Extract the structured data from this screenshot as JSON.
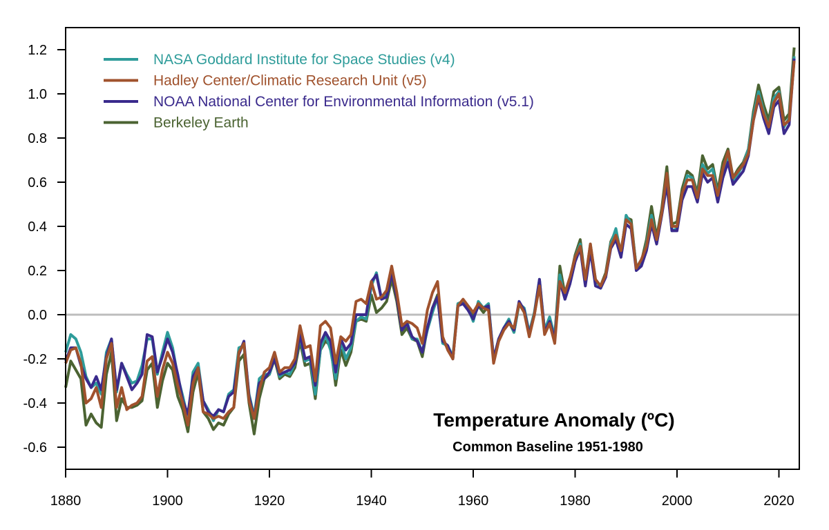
{
  "chart_data": {
    "type": "line",
    "title": "Temperature Anomaly (ºC)",
    "subtitle": "Common Baseline 1951-1980",
    "xlabel": "",
    "ylabel": "",
    "xlim": [
      1880,
      2024
    ],
    "ylim": [
      -0.7,
      1.3
    ],
    "x_start": 1880,
    "x_end": 2023,
    "xticks": [
      1880,
      1900,
      1920,
      1940,
      1960,
      1980,
      2000,
      2020
    ],
    "yticks": [
      "-0.6",
      "-0.4",
      "-0.2",
      "0.0",
      "0.2",
      "0.4",
      "0.6",
      "0.8",
      "1.0",
      "1.2"
    ],
    "reference_line": 0.0,
    "reference_line_color": "#bdbdbd",
    "grid": false,
    "legend_placement": "top-left",
    "series": [
      {
        "name": "NASA Goddard Institute for Space Studies (v4)",
        "color": "#2e9c9a",
        "values": [
          -0.17,
          -0.09,
          -0.11,
          -0.17,
          -0.28,
          -0.33,
          -0.31,
          -0.36,
          -0.17,
          -0.11,
          -0.35,
          -0.22,
          -0.27,
          -0.31,
          -0.3,
          -0.23,
          -0.11,
          -0.11,
          -0.27,
          -0.17,
          -0.08,
          -0.15,
          -0.28,
          -0.37,
          -0.47,
          -0.26,
          -0.22,
          -0.39,
          -0.43,
          -0.48,
          -0.43,
          -0.44,
          -0.36,
          -0.34,
          -0.15,
          -0.14,
          -0.36,
          -0.46,
          -0.29,
          -0.27,
          -0.27,
          -0.19,
          -0.28,
          -0.26,
          -0.27,
          -0.22,
          -0.1,
          -0.21,
          -0.2,
          -0.36,
          -0.16,
          -0.09,
          -0.16,
          -0.29,
          -0.12,
          -0.2,
          -0.15,
          -0.03,
          -0.01,
          -0.02,
          0.13,
          0.19,
          0.07,
          0.09,
          0.2,
          0.09,
          -0.07,
          -0.03,
          -0.11,
          -0.11,
          -0.17,
          -0.07,
          0.01,
          0.08,
          -0.13,
          -0.14,
          -0.19,
          0.05,
          0.06,
          0.03,
          -0.03,
          0.06,
          0.03,
          0.05,
          -0.2,
          -0.11,
          -0.06,
          -0.02,
          -0.08,
          0.05,
          0.03,
          -0.08,
          0.01,
          0.16,
          -0.07,
          -0.01,
          -0.1,
          0.18,
          0.07,
          0.16,
          0.26,
          0.32,
          0.14,
          0.31,
          0.16,
          0.12,
          0.18,
          0.32,
          0.39,
          0.27,
          0.45,
          0.41,
          0.22,
          0.23,
          0.32,
          0.45,
          0.33,
          0.46,
          0.61,
          0.38,
          0.39,
          0.54,
          0.63,
          0.62,
          0.53,
          0.68,
          0.64,
          0.66,
          0.54,
          0.65,
          0.72,
          0.61,
          0.64,
          0.68,
          0.75,
          0.9,
          1.01,
          0.92,
          0.85,
          0.98,
          1.01,
          0.85,
          0.89,
          1.17
        ]
      },
      {
        "name": "Hadley Center/Climatic Research Unit (v5)",
        "color": "#a0522d",
        "values": [
          -0.22,
          -0.16,
          -0.15,
          -0.22,
          -0.4,
          -0.38,
          -0.33,
          -0.42,
          -0.2,
          -0.13,
          -0.42,
          -0.33,
          -0.43,
          -0.41,
          -0.4,
          -0.37,
          -0.21,
          -0.19,
          -0.37,
          -0.25,
          -0.17,
          -0.22,
          -0.32,
          -0.4,
          -0.5,
          -0.31,
          -0.24,
          -0.44,
          -0.45,
          -0.47,
          -0.46,
          -0.47,
          -0.44,
          -0.42,
          -0.17,
          -0.13,
          -0.39,
          -0.47,
          -0.34,
          -0.26,
          -0.24,
          -0.17,
          -0.26,
          -0.24,
          -0.24,
          -0.2,
          -0.05,
          -0.15,
          -0.14,
          -0.3,
          -0.05,
          -0.03,
          -0.06,
          -0.22,
          -0.1,
          -0.12,
          -0.09,
          0.06,
          0.07,
          0.05,
          0.15,
          0.07,
          0.08,
          0.11,
          0.22,
          0.1,
          -0.05,
          -0.03,
          -0.04,
          -0.06,
          -0.13,
          0.02,
          0.1,
          0.15,
          -0.1,
          -0.16,
          -0.2,
          0.04,
          0.07,
          0.04,
          0.01,
          0.05,
          0.03,
          0.02,
          -0.22,
          -0.12,
          -0.07,
          -0.04,
          -0.06,
          0.05,
          0.01,
          -0.1,
          0.0,
          0.13,
          -0.09,
          -0.04,
          -0.13,
          0.15,
          0.1,
          0.17,
          0.26,
          0.31,
          0.16,
          0.32,
          0.16,
          0.13,
          0.18,
          0.31,
          0.36,
          0.29,
          0.43,
          0.41,
          0.21,
          0.25,
          0.31,
          0.43,
          0.34,
          0.46,
          0.64,
          0.4,
          0.4,
          0.55,
          0.61,
          0.61,
          0.53,
          0.66,
          0.63,
          0.63,
          0.54,
          0.66,
          0.74,
          0.62,
          0.65,
          0.68,
          0.73,
          0.88,
          0.99,
          0.91,
          0.85,
          0.96,
          1.0,
          0.86,
          0.88,
          1.15
        ]
      },
      {
        "name": "NOAA National Center for Environmental Information (v5.1)",
        "color": "#3a2a8c",
        "values": [
          -0.21,
          -0.15,
          -0.15,
          -0.23,
          -0.29,
          -0.33,
          -0.28,
          -0.34,
          -0.19,
          -0.11,
          -0.34,
          -0.22,
          -0.28,
          -0.34,
          -0.31,
          -0.27,
          -0.09,
          -0.1,
          -0.26,
          -0.19,
          -0.11,
          -0.17,
          -0.27,
          -0.39,
          -0.45,
          -0.28,
          -0.24,
          -0.39,
          -0.44,
          -0.46,
          -0.43,
          -0.44,
          -0.37,
          -0.35,
          -0.18,
          -0.12,
          -0.37,
          -0.47,
          -0.31,
          -0.29,
          -0.26,
          -0.2,
          -0.27,
          -0.26,
          -0.25,
          -0.22,
          -0.09,
          -0.2,
          -0.19,
          -0.32,
          -0.13,
          -0.08,
          -0.12,
          -0.26,
          -0.11,
          -0.16,
          -0.13,
          0.0,
          0.0,
          0.0,
          0.15,
          0.18,
          0.07,
          0.08,
          0.19,
          0.08,
          -0.07,
          -0.04,
          -0.1,
          -0.12,
          -0.17,
          -0.06,
          0.03,
          0.08,
          -0.12,
          -0.14,
          -0.2,
          0.04,
          0.05,
          0.02,
          -0.02,
          0.04,
          0.03,
          0.04,
          -0.2,
          -0.11,
          -0.06,
          -0.03,
          -0.07,
          0.06,
          0.02,
          -0.09,
          0.0,
          0.16,
          -0.08,
          -0.03,
          -0.11,
          0.15,
          0.07,
          0.14,
          0.24,
          0.3,
          0.13,
          0.29,
          0.13,
          0.12,
          0.17,
          0.3,
          0.34,
          0.26,
          0.41,
          0.39,
          0.2,
          0.22,
          0.29,
          0.41,
          0.32,
          0.45,
          0.59,
          0.38,
          0.38,
          0.52,
          0.58,
          0.58,
          0.51,
          0.64,
          0.6,
          0.62,
          0.51,
          0.62,
          0.69,
          0.59,
          0.62,
          0.65,
          0.72,
          0.88,
          0.98,
          0.89,
          0.82,
          0.94,
          0.97,
          0.82,
          0.86,
          1.16
        ]
      },
      {
        "name": "Berkeley Earth",
        "color": "#4b6332",
        "values": [
          -0.33,
          -0.21,
          -0.25,
          -0.29,
          -0.5,
          -0.45,
          -0.49,
          -0.51,
          -0.27,
          -0.17,
          -0.48,
          -0.38,
          -0.42,
          -0.42,
          -0.41,
          -0.39,
          -0.25,
          -0.22,
          -0.42,
          -0.3,
          -0.22,
          -0.25,
          -0.37,
          -0.43,
          -0.53,
          -0.35,
          -0.26,
          -0.44,
          -0.47,
          -0.52,
          -0.49,
          -0.5,
          -0.45,
          -0.42,
          -0.21,
          -0.18,
          -0.4,
          -0.54,
          -0.38,
          -0.29,
          -0.27,
          -0.2,
          -0.29,
          -0.27,
          -0.28,
          -0.24,
          -0.12,
          -0.23,
          -0.22,
          -0.38,
          -0.16,
          -0.12,
          -0.14,
          -0.32,
          -0.16,
          -0.23,
          -0.17,
          -0.03,
          -0.02,
          -0.03,
          0.09,
          0.01,
          0.03,
          0.06,
          0.16,
          0.06,
          -0.09,
          -0.06,
          -0.11,
          -0.12,
          -0.19,
          -0.06,
          0.03,
          0.09,
          -0.12,
          -0.15,
          -0.2,
          0.05,
          0.06,
          0.03,
          -0.01,
          0.04,
          0.01,
          0.04,
          -0.21,
          -0.11,
          -0.06,
          -0.03,
          -0.08,
          0.05,
          0.02,
          -0.09,
          0.0,
          0.14,
          -0.07,
          -0.02,
          -0.1,
          0.22,
          0.09,
          0.16,
          0.27,
          0.34,
          0.15,
          0.32,
          0.15,
          0.13,
          0.19,
          0.33,
          0.38,
          0.28,
          0.44,
          0.43,
          0.21,
          0.24,
          0.34,
          0.49,
          0.35,
          0.48,
          0.67,
          0.41,
          0.42,
          0.57,
          0.65,
          0.63,
          0.55,
          0.72,
          0.66,
          0.68,
          0.56,
          0.69,
          0.75,
          0.62,
          0.66,
          0.69,
          0.75,
          0.92,
          1.04,
          0.95,
          0.88,
          1.01,
          1.03,
          0.88,
          0.91,
          1.21
        ]
      }
    ]
  }
}
